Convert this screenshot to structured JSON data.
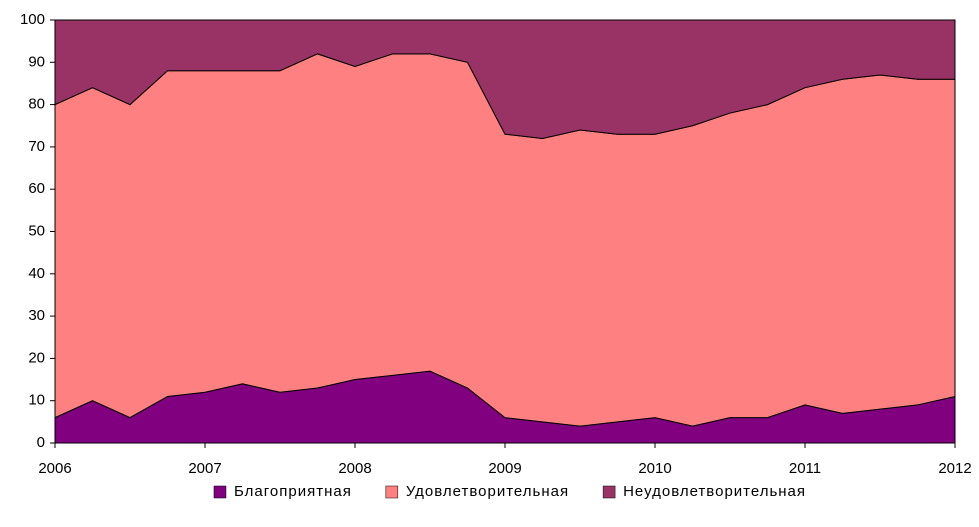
{
  "chart_data": {
    "type": "area",
    "stacked": true,
    "categories": [
      2006,
      null,
      null,
      null,
      2007,
      null,
      null,
      null,
      2008,
      null,
      null,
      null,
      2009,
      null,
      null,
      null,
      2010,
      null,
      null,
      null,
      2011,
      null,
      null,
      null,
      2012
    ],
    "series": [
      {
        "name": "Благоприятная",
        "color": "#800080",
        "values": [
          6,
          10,
          6,
          11,
          12,
          14,
          12,
          13,
          15,
          16,
          17,
          13,
          6,
          5,
          4,
          5,
          6,
          4,
          6,
          6,
          9,
          7,
          8,
          9,
          11
        ]
      },
      {
        "name": "Удовлетворительная",
        "color": "#ff8080",
        "values": [
          74,
          74,
          74,
          77,
          76,
          74,
          76,
          79,
          74,
          76,
          75,
          77,
          67,
          67,
          70,
          68,
          67,
          71,
          72,
          74,
          75,
          79,
          79,
          77,
          75
        ]
      },
      {
        "name": "Неудовлетворительная",
        "color": "#993366",
        "values": [
          20,
          16,
          20,
          12,
          12,
          12,
          12,
          8,
          11,
          8,
          8,
          10,
          27,
          28,
          26,
          27,
          27,
          25,
          22,
          20,
          16,
          14,
          13,
          14,
          14
        ]
      }
    ],
    "ylim": [
      0,
      100
    ],
    "yticks": [
      0,
      10,
      20,
      30,
      40,
      50,
      60,
      70,
      80,
      90,
      100
    ],
    "legend": "bottom"
  }
}
